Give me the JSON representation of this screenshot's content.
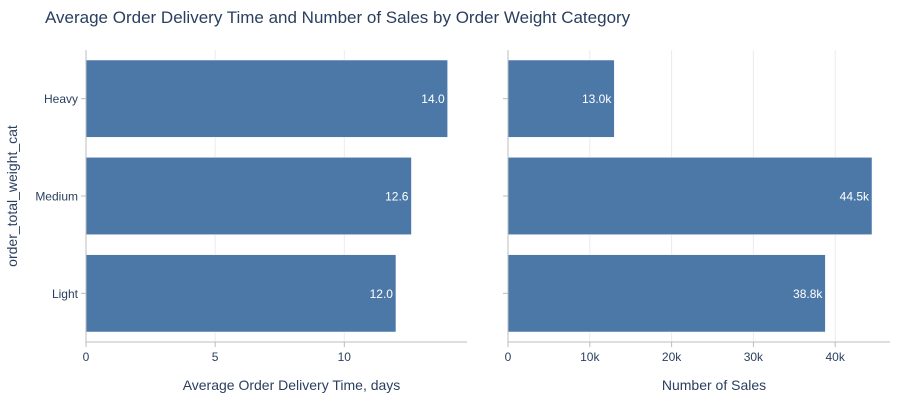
{
  "title": "Average Order Delivery Time and Number of Sales by Order Weight Category",
  "shared_ylabel": "order_total_weight_cat",
  "bar_color": "#4c78a8",
  "chart_data": [
    {
      "type": "bar",
      "orientation": "horizontal",
      "categories": [
        "Heavy",
        "Medium",
        "Light"
      ],
      "values": [
        14.0,
        12.6,
        12.0
      ],
      "value_labels": [
        "14.0",
        "12.6",
        "12.0"
      ],
      "xlabel": "Average Order Delivery Time, days",
      "ylabel": "order_total_weight_cat",
      "xlim": [
        0,
        14.75
      ],
      "xticks": [
        0,
        5,
        10
      ],
      "xtick_labels": [
        "0",
        "5",
        "10"
      ],
      "grid": true
    },
    {
      "type": "bar",
      "orientation": "horizontal",
      "categories": [
        "Heavy",
        "Medium",
        "Light"
      ],
      "values": [
        13000,
        44500,
        38800
      ],
      "value_labels": [
        "13.0k",
        "44.5k",
        "38.8k"
      ],
      "xlabel": "Number of Sales",
      "xlim": [
        0,
        46700
      ],
      "xticks": [
        0,
        10000,
        20000,
        30000,
        40000
      ],
      "xtick_labels": [
        "0",
        "10k",
        "20k",
        "30k",
        "40k"
      ],
      "grid": true
    }
  ]
}
